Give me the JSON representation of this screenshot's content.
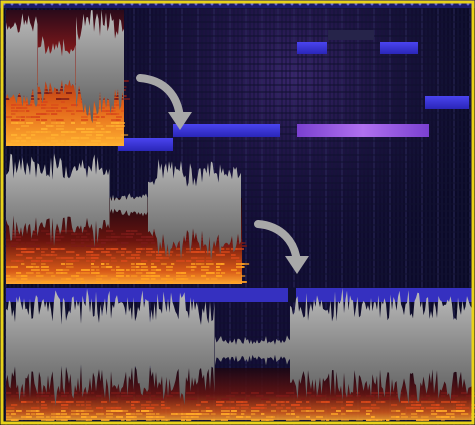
{
  "palette": {
    "background": "#06061a",
    "frame": "#e8d21a",
    "note_blue": "#3a35d8",
    "note_purple": "#8a48d8",
    "waveform": "#9a9a9a",
    "spectrogram_hot": "#ff9a20",
    "spectrogram_warm": "#c8301a",
    "arrow": "#a8a8a8"
  },
  "lanes": [
    {
      "name": "lane-top",
      "waveform_segments": 1,
      "arrow_to_next": true
    },
    {
      "name": "lane-middle",
      "waveform_segments": 2,
      "arrow_to_next": true
    },
    {
      "name": "lane-bottom",
      "waveform_segments": 2,
      "arrow_to_next": false
    }
  ],
  "icons": [
    "curved-arrow-icon",
    "curved-arrow-icon"
  ]
}
